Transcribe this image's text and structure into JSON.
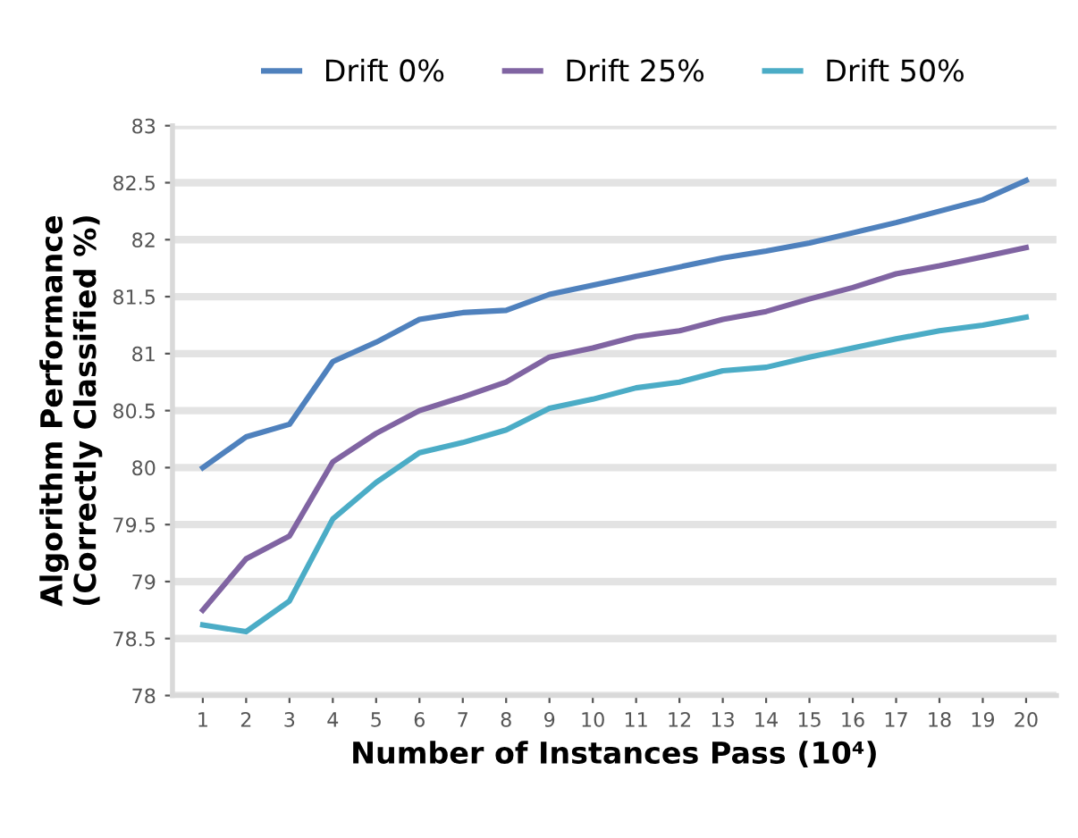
{
  "chart_data": {
    "type": "line",
    "xlabel": "Number of Instances Pass (10⁴)",
    "ylabel": "Algorithm Performance\n(Correctly Classified %)",
    "categories": [
      "1",
      "2",
      "3",
      "4",
      "5",
      "6",
      "7",
      "8",
      "9",
      "10",
      "11",
      "12",
      "13",
      "14",
      "15",
      "16",
      "17",
      "18",
      "19",
      "20"
    ],
    "series": [
      {
        "name": "Drift 0%",
        "color": "#4f81bd",
        "values": [
          80.0,
          80.27,
          80.38,
          80.93,
          81.1,
          81.3,
          81.36,
          81.38,
          81.52,
          81.6,
          81.68,
          81.76,
          81.84,
          81.9,
          81.97,
          82.06,
          82.15,
          82.25,
          82.35,
          82.52
        ]
      },
      {
        "name": "Drift 25%",
        "color": "#8064a2",
        "values": [
          78.75,
          79.2,
          79.4,
          80.05,
          80.3,
          80.5,
          80.62,
          80.75,
          80.97,
          81.05,
          81.15,
          81.2,
          81.3,
          81.37,
          81.48,
          81.58,
          81.7,
          81.77,
          81.85,
          81.93
        ]
      },
      {
        "name": "Drift 50%",
        "color": "#4bacc6",
        "values": [
          78.62,
          78.56,
          78.83,
          79.55,
          79.87,
          80.13,
          80.22,
          80.33,
          80.52,
          80.6,
          80.7,
          80.75,
          80.85,
          80.88,
          80.97,
          81.05,
          81.13,
          81.2,
          81.25,
          81.32
        ]
      }
    ],
    "ylim": [
      78,
      83
    ],
    "yticks": [
      78,
      78.5,
      79,
      79.5,
      80,
      80.5,
      81,
      81.5,
      82,
      82.5,
      83
    ],
    "grid": "y",
    "legend": "top",
    "marker": "none",
    "line_style": "solid"
  }
}
